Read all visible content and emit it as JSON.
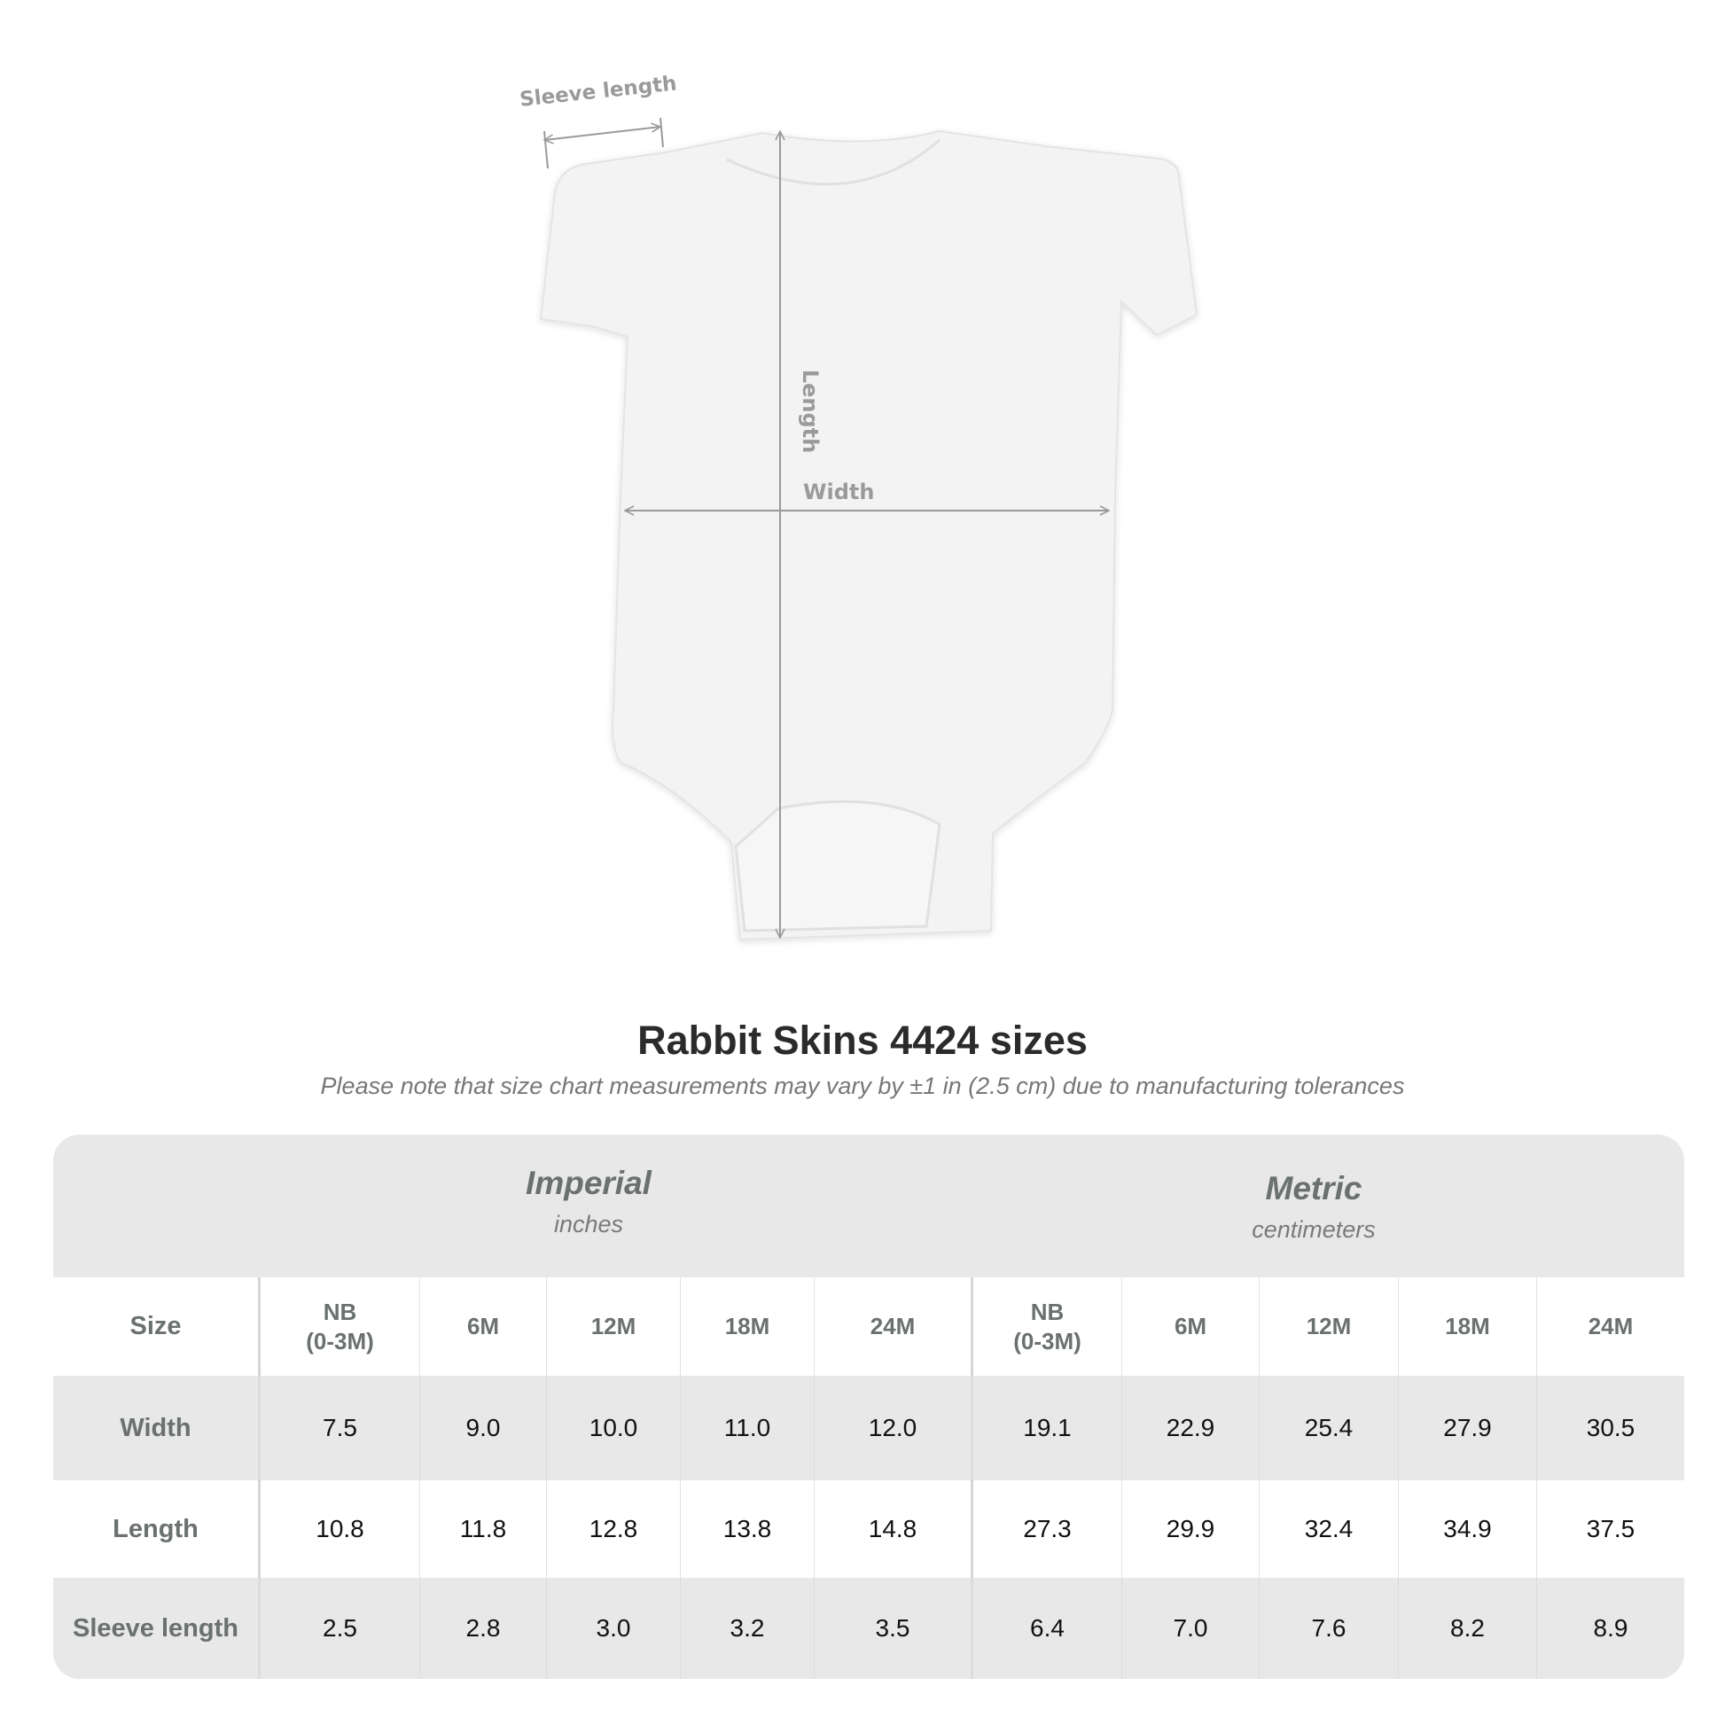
{
  "diagram": {
    "labels": {
      "sleeve": "Sleeve length",
      "length": "Length",
      "width": "Width"
    },
    "arrow_color": "#9a9a9a"
  },
  "title": "Rabbit Skins 4424 sizes",
  "subtitle": "Please note that size chart measurements may vary by ±1 in (2.5 cm) due to manufacturing tolerances",
  "table": {
    "imperial": {
      "name": "Imperial",
      "unit": "inches"
    },
    "metric": {
      "name": "Metric",
      "unit": "centimeters"
    },
    "size_label": "Size",
    "sizes": [
      "NB\n(0-3M)",
      "6M",
      "12M",
      "18M",
      "24M"
    ],
    "rows": [
      {
        "label": "Width",
        "imperial": [
          "7.5",
          "9.0",
          "10.0",
          "11.0",
          "12.0"
        ],
        "metric": [
          "19.1",
          "22.9",
          "25.4",
          "27.9",
          "30.5"
        ]
      },
      {
        "label": "Length",
        "imperial": [
          "10.8",
          "11.8",
          "12.8",
          "13.8",
          "14.8"
        ],
        "metric": [
          "27.3",
          "29.9",
          "32.4",
          "34.9",
          "37.5"
        ]
      },
      {
        "label": "Sleeve length",
        "imperial": [
          "2.5",
          "2.8",
          "3.0",
          "3.2",
          "3.5"
        ],
        "metric": [
          "6.4",
          "7.0",
          "7.6",
          "8.2",
          "8.9"
        ]
      }
    ]
  }
}
